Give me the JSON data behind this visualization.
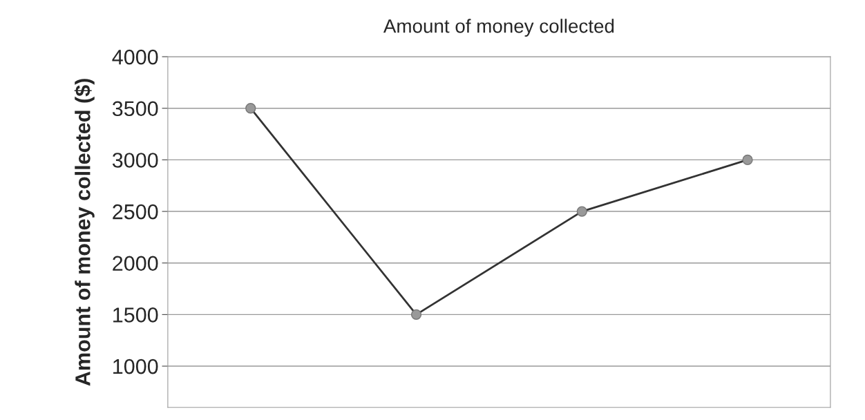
{
  "chart_data": {
    "type": "line",
    "title": "Amount of money collected",
    "ylabel": "Amount of money collected ($)",
    "categories": [
      null,
      null,
      null,
      null
    ],
    "series": [
      {
        "color": "#333333",
        "values": [
          3500,
          1500,
          2500,
          3000
        ]
      }
    ],
    "marker": "circle",
    "line_style": "solid",
    "ylim": [
      600,
      4000
    ],
    "yticks": [
      1000,
      1500,
      2000,
      2500,
      3000,
      3500,
      4000
    ],
    "grid": "y",
    "legend": false
  }
}
